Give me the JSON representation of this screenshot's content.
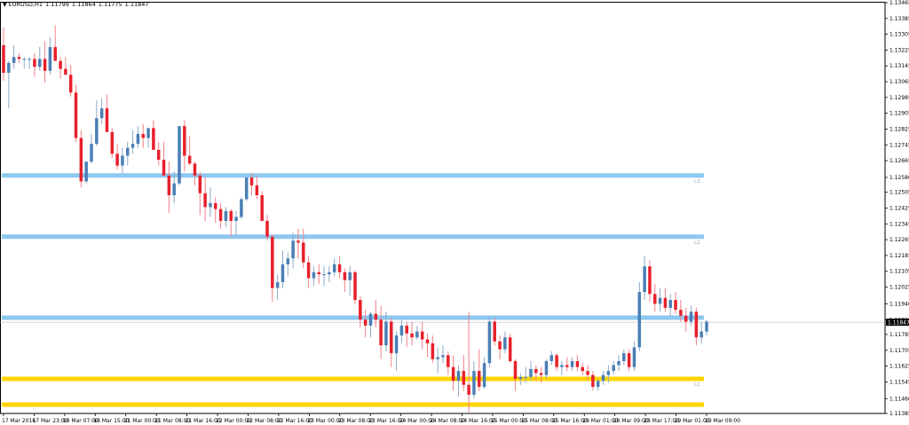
{
  "window": {
    "symbol": "EURUSD,H1",
    "ohlc": [
      "1.11799",
      "1.11864",
      "1.11775",
      "1.11847"
    ]
  },
  "colors": {
    "bull": "#4a7fb5",
    "bear": "#e8202b",
    "resistance": "#8dc8f0",
    "support": "#ffd400",
    "current_price_line": "#c0c0c0"
  },
  "price_axis": {
    "ticks": [
      "1.13465",
      "1.13385",
      "1.13305",
      "1.13225",
      "1.13145",
      "1.13065",
      "1.12985",
      "1.12905",
      "1.12825",
      "1.12745",
      "1.12665",
      "1.12580",
      "1.12505",
      "1.12425",
      "1.12345",
      "1.12265",
      "1.12185",
      "1.12105",
      "1.12025",
      "1.11940",
      "1.11860",
      "1.11785",
      "1.11705",
      "1.11625",
      "1.11545",
      "1.11460",
      "1.11385"
    ],
    "current_price": "1.11847"
  },
  "time_axis": {
    "ticks": [
      "17 Mar 2016",
      "17 Mar 23:00",
      "18 Mar 07:00",
      "18 Mar 15:00",
      "21 Mar 00:00",
      "21 Mar 08:00",
      "21 Mar 16:00",
      "22 Mar 00:00",
      "22 Mar 08:00",
      "22 Mar 16:00",
      "23 Mar 00:00",
      "23 Mar 08:00",
      "23 Mar 16:00",
      "24 Mar 00:00",
      "24 Mar 08:00",
      "24 Mar 16:00",
      "25 Mar 00:00",
      "25 Mar 08:00",
      "25 Mar 16:00",
      "28 Mar 01:00",
      "28 Mar 09:00",
      "28 Mar 17:00",
      "29 Mar 01:00",
      "29 Mar 09:00"
    ]
  },
  "levels": [
    {
      "kind": "resistance",
      "price": 1.1259,
      "label": "L3"
    },
    {
      "kind": "resistance",
      "price": 1.1228,
      "label": "L2"
    },
    {
      "kind": "resistance",
      "price": 1.1187,
      "label": ""
    },
    {
      "kind": "support",
      "price": 1.1156,
      "label": "L1"
    },
    {
      "kind": "support",
      "price": 1.1143,
      "label": ""
    }
  ],
  "chart_data": {
    "type": "candlestick",
    "symbol": "EURUSD",
    "timeframe": "H1",
    "ylim": [
      1.11385,
      1.13465
    ],
    "candles": [
      [
        1.1325,
        1.1334,
        1.1307,
        1.1311
      ],
      [
        1.1311,
        1.1317,
        1.1293,
        1.1316
      ],
      [
        1.1316,
        1.1325,
        1.1313,
        1.1319
      ],
      [
        1.1319,
        1.1321,
        1.1316,
        1.1318
      ],
      [
        1.1318,
        1.1319,
        1.1313,
        1.1318
      ],
      [
        1.1318,
        1.1319,
        1.1313,
        1.1318
      ],
      [
        1.1318,
        1.1321,
        1.1309,
        1.1314
      ],
      [
        1.1314,
        1.1324,
        1.1312,
        1.1318
      ],
      [
        1.1318,
        1.1327,
        1.1306,
        1.1312
      ],
      [
        1.1312,
        1.1329,
        1.131,
        1.1324
      ],
      [
        1.1324,
        1.1335,
        1.1317,
        1.1317
      ],
      [
        1.1317,
        1.1319,
        1.1308,
        1.1313
      ],
      [
        1.1313,
        1.1319,
        1.131,
        1.131
      ],
      [
        1.131,
        1.1315,
        1.1299,
        1.1301
      ],
      [
        1.1301,
        1.1305,
        1.1276,
        1.1278
      ],
      [
        1.1278,
        1.1282,
        1.1253,
        1.1256
      ],
      [
        1.1256,
        1.1266,
        1.1255,
        1.1266
      ],
      [
        1.1266,
        1.128,
        1.1265,
        1.1275
      ],
      [
        1.1275,
        1.1297,
        1.1274,
        1.1288
      ],
      [
        1.1288,
        1.1298,
        1.1285,
        1.1293
      ],
      [
        1.1293,
        1.13,
        1.1281,
        1.1281
      ],
      [
        1.1281,
        1.1283,
        1.1268,
        1.127
      ],
      [
        1.127,
        1.1275,
        1.1262,
        1.1264
      ],
      [
        1.1264,
        1.1273,
        1.126,
        1.1269
      ],
      [
        1.1269,
        1.1276,
        1.1264,
        1.1273
      ],
      [
        1.1273,
        1.1282,
        1.127,
        1.1275
      ],
      [
        1.1275,
        1.1284,
        1.1273,
        1.128
      ],
      [
        1.128,
        1.1285,
        1.1273,
        1.1278
      ],
      [
        1.1278,
        1.1282,
        1.1273,
        1.1283
      ],
      [
        1.1283,
        1.1287,
        1.1272,
        1.1272
      ],
      [
        1.1272,
        1.1276,
        1.1264,
        1.1267
      ],
      [
        1.1267,
        1.1276,
        1.1259,
        1.1259
      ],
      [
        1.1259,
        1.1266,
        1.124,
        1.1249
      ],
      [
        1.1249,
        1.1261,
        1.1245,
        1.1255
      ],
      [
        1.1255,
        1.1284,
        1.1254,
        1.1284
      ],
      [
        1.1284,
        1.1287,
        1.1261,
        1.1269
      ],
      [
        1.1269,
        1.1279,
        1.1264,
        1.1265
      ],
      [
        1.1265,
        1.1266,
        1.1254,
        1.1259
      ],
      [
        1.1259,
        1.1261,
        1.1239,
        1.125
      ],
      [
        1.125,
        1.1258,
        1.1236,
        1.1243
      ],
      [
        1.1243,
        1.1253,
        1.1238,
        1.1245
      ],
      [
        1.1245,
        1.1248,
        1.1235,
        1.1242
      ],
      [
        1.1242,
        1.1245,
        1.1232,
        1.1236
      ],
      [
        1.1236,
        1.1243,
        1.1233,
        1.1241
      ],
      [
        1.1241,
        1.1242,
        1.1228,
        1.1236
      ],
      [
        1.1236,
        1.1241,
        1.1228,
        1.1238
      ],
      [
        1.1238,
        1.1248,
        1.1237,
        1.1247
      ],
      [
        1.1247,
        1.1258,
        1.1246,
        1.1258
      ],
      [
        1.1258,
        1.126,
        1.1249,
        1.1254
      ],
      [
        1.1254,
        1.1259,
        1.1247,
        1.1249
      ],
      [
        1.1249,
        1.1251,
        1.1236,
        1.1236
      ],
      [
        1.1236,
        1.1239,
        1.1226,
        1.1228
      ],
      [
        1.1228,
        1.1229,
        1.1195,
        1.1202
      ],
      [
        1.1202,
        1.1209,
        1.1196,
        1.1205
      ],
      [
        1.1205,
        1.1221,
        1.1202,
        1.1214
      ],
      [
        1.1214,
        1.122,
        1.1208,
        1.1217
      ],
      [
        1.1217,
        1.123,
        1.1212,
        1.1226
      ],
      [
        1.1226,
        1.1232,
        1.1217,
        1.1225
      ],
      [
        1.1225,
        1.1232,
        1.1212,
        1.1215
      ],
      [
        1.1215,
        1.1218,
        1.1202,
        1.1207
      ],
      [
        1.1207,
        1.1213,
        1.1203,
        1.121
      ],
      [
        1.121,
        1.1214,
        1.1204,
        1.1209
      ],
      [
        1.1209,
        1.1213,
        1.1203,
        1.1209
      ],
      [
        1.1209,
        1.1213,
        1.1205,
        1.121
      ],
      [
        1.121,
        1.1217,
        1.1208,
        1.1214
      ],
      [
        1.1214,
        1.1218,
        1.1207,
        1.121
      ],
      [
        1.121,
        1.1212,
        1.12,
        1.1206
      ],
      [
        1.1206,
        1.1213,
        1.1198,
        1.121
      ],
      [
        1.121,
        1.1211,
        1.1194,
        1.1196
      ],
      [
        1.1196,
        1.1198,
        1.1182,
        1.1186
      ],
      [
        1.1186,
        1.1191,
        1.1177,
        1.1183
      ],
      [
        1.1183,
        1.119,
        1.1177,
        1.1189
      ],
      [
        1.1189,
        1.1196,
        1.1182,
        1.1186
      ],
      [
        1.1186,
        1.1193,
        1.1166,
        1.1173
      ],
      [
        1.1173,
        1.119,
        1.117,
        1.1185
      ],
      [
        1.1185,
        1.1187,
        1.1162,
        1.1169
      ],
      [
        1.1169,
        1.118,
        1.116,
        1.1178
      ],
      [
        1.1178,
        1.1186,
        1.1174,
        1.1183
      ],
      [
        1.1183,
        1.1185,
        1.1172,
        1.1179
      ],
      [
        1.1179,
        1.1185,
        1.1173,
        1.1177
      ],
      [
        1.1177,
        1.1183,
        1.1176,
        1.118
      ],
      [
        1.118,
        1.1185,
        1.1171,
        1.1176
      ],
      [
        1.1176,
        1.1179,
        1.1167,
        1.1174
      ],
      [
        1.1174,
        1.1178,
        1.1164,
        1.1166
      ],
      [
        1.1166,
        1.1172,
        1.1159,
        1.1167
      ],
      [
        1.1167,
        1.1173,
        1.1164,
        1.1168
      ],
      [
        1.1168,
        1.117,
        1.1158,
        1.1162
      ],
      [
        1.1162,
        1.1168,
        1.115,
        1.1155
      ],
      [
        1.1155,
        1.1163,
        1.1147,
        1.116
      ],
      [
        1.116,
        1.1168,
        1.115,
        1.1153
      ],
      [
        1.1153,
        1.119,
        1.1139,
        1.1148
      ],
      [
        1.1148,
        1.1165,
        1.1146,
        1.116
      ],
      [
        1.116,
        1.1171,
        1.115,
        1.1152
      ],
      [
        1.1152,
        1.1167,
        1.1151,
        1.1164
      ],
      [
        1.1164,
        1.1187,
        1.1162,
        1.1185
      ],
      [
        1.1185,
        1.1187,
        1.1173,
        1.1175
      ],
      [
        1.1175,
        1.1178,
        1.1166,
        1.1171
      ],
      [
        1.1171,
        1.118,
        1.1169,
        1.1177
      ],
      [
        1.1177,
        1.1179,
        1.1164,
        1.1165
      ],
      [
        1.1165,
        1.1166,
        1.115,
        1.1156
      ],
      [
        1.1156,
        1.1159,
        1.1153,
        1.1157
      ],
      [
        1.1157,
        1.1162,
        1.1154,
        1.1157
      ],
      [
        1.1157,
        1.1165,
        1.1155,
        1.1161
      ],
      [
        1.1161,
        1.1163,
        1.1155,
        1.1159
      ],
      [
        1.1159,
        1.1162,
        1.1154,
        1.1158
      ],
      [
        1.1158,
        1.1166,
        1.1156,
        1.1165
      ],
      [
        1.1165,
        1.117,
        1.1163,
        1.1168
      ],
      [
        1.1168,
        1.1169,
        1.116,
        1.1162
      ],
      [
        1.1162,
        1.1165,
        1.1158,
        1.1163
      ],
      [
        1.1163,
        1.1167,
        1.116,
        1.1162
      ],
      [
        1.1162,
        1.1167,
        1.116,
        1.1165
      ],
      [
        1.1165,
        1.1168,
        1.116,
        1.1162
      ],
      [
        1.1162,
        1.1164,
        1.1158,
        1.116
      ],
      [
        1.116,
        1.1163,
        1.1155,
        1.1158
      ],
      [
        1.1158,
        1.116,
        1.115,
        1.1152
      ],
      [
        1.1152,
        1.1156,
        1.115,
        1.1155
      ],
      [
        1.1155,
        1.116,
        1.1153,
        1.1158
      ],
      [
        1.1158,
        1.1163,
        1.1154,
        1.116
      ],
      [
        1.116,
        1.1165,
        1.1158,
        1.1163
      ],
      [
        1.1163,
        1.1168,
        1.116,
        1.1165
      ],
      [
        1.1165,
        1.1171,
        1.1163,
        1.1169
      ],
      [
        1.1169,
        1.1171,
        1.116,
        1.1162
      ],
      [
        1.1162,
        1.1175,
        1.116,
        1.1172
      ],
      [
        1.1172,
        1.1205,
        1.117,
        1.12
      ],
      [
        1.12,
        1.1218,
        1.1196,
        1.1213
      ],
      [
        1.1213,
        1.1216,
        1.1195,
        1.1199
      ],
      [
        1.1199,
        1.1204,
        1.119,
        1.1194
      ],
      [
        1.1194,
        1.1202,
        1.119,
        1.1197
      ],
      [
        1.1197,
        1.1202,
        1.119,
        1.1192
      ],
      [
        1.1192,
        1.1199,
        1.1188,
        1.1196
      ],
      [
        1.1196,
        1.12,
        1.1189,
        1.1191
      ],
      [
        1.1191,
        1.1196,
        1.1185,
        1.1188
      ],
      [
        1.1188,
        1.1192,
        1.118,
        1.1185
      ],
      [
        1.1185,
        1.1193,
        1.1183,
        1.119
      ],
      [
        1.119,
        1.1192,
        1.1173,
        1.1177
      ],
      [
        1.1177,
        1.1185,
        1.1174,
        1.118
      ],
      [
        1.118,
        1.1186,
        1.1178,
        1.1185
      ]
    ]
  }
}
